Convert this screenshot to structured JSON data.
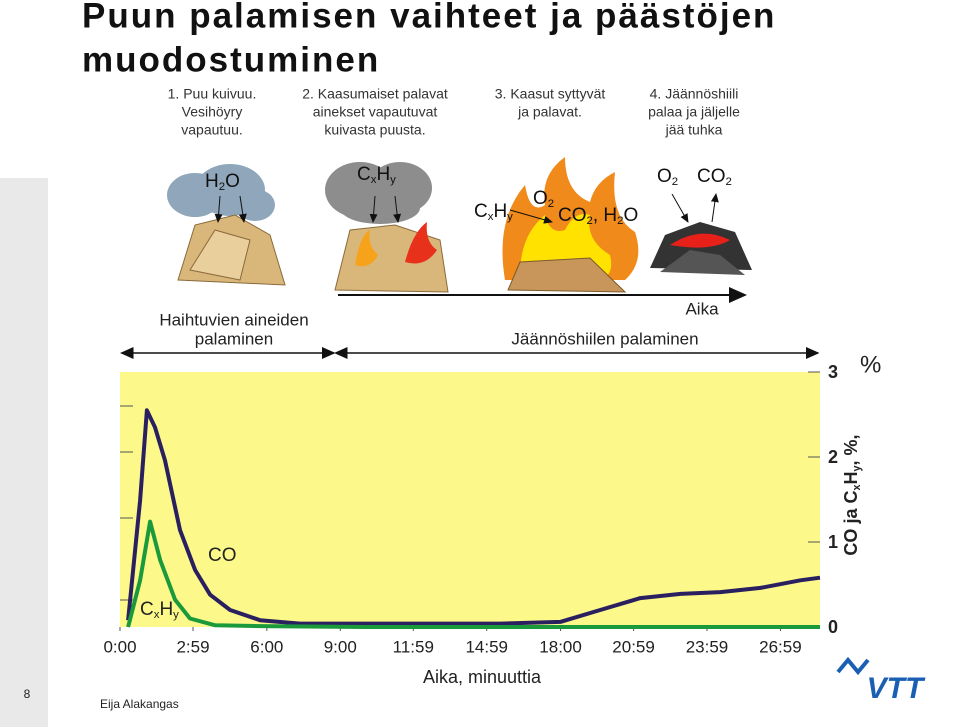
{
  "header": {
    "title": [
      "Puun palamisen vaihteet ja päästöjen",
      "muodostuminen"
    ]
  },
  "stages": [
    {
      "lines": [
        "1. Puu kuivuu.",
        "Vesihöyry",
        "vapautuu."
      ]
    },
    {
      "lines": [
        "2. Kaasumaiset palavat",
        "ainekset vapautuvat",
        "kuivasta puusta."
      ]
    },
    {
      "lines": [
        "3. Kaasut syttyvät",
        "ja palavat."
      ]
    },
    {
      "lines": [
        "4. Jäännöshiili",
        "palaa ja jäljelle",
        "jää tuhka"
      ]
    }
  ],
  "diagram_labels": {
    "water": "H2O",
    "gas_cloud": "CxHy",
    "gas_flame": "CxHy",
    "oxygen_flame": "O2",
    "products": "CO2, H2O",
    "oxygen": "O2",
    "carbon_dioxide": "CO2"
  },
  "phases": {
    "time": "Aika",
    "volatile": [
      "Haihtuvien aineiden",
      "palaminen"
    ],
    "char": "Jäännöshiilen palaminen"
  },
  "chart_data": {
    "type": "line",
    "x_label": "Aika, minuuttia",
    "y_label": "CO ja CxHy, %,",
    "y_unit": "%",
    "xlim": [
      0,
      28.6
    ],
    "xticks": [
      {
        "value": 0,
        "label": "0:00"
      },
      {
        "value": 2.983,
        "label": "2:59"
      },
      {
        "value": 6,
        "label": "6:00"
      },
      {
        "value": 9,
        "label": "9:00"
      },
      {
        "value": 11.983,
        "label": "11:59"
      },
      {
        "value": 14.983,
        "label": "14:59"
      },
      {
        "value": 18,
        "label": "18:00"
      },
      {
        "value": 20.983,
        "label": "20:59"
      },
      {
        "value": 23.983,
        "label": "23:59"
      },
      {
        "value": 26.983,
        "label": "26:59"
      }
    ],
    "ylim": [
      0,
      3
    ],
    "yticks": [
      0,
      1,
      2,
      3
    ],
    "background": "#fcf88a",
    "series": [
      {
        "name": "CO",
        "color": "#2a2060",
        "x": [
          0.33,
          0.82,
          1.1,
          1.43,
          1.84,
          2.45,
          3.07,
          3.68,
          4.5,
          5.72,
          7.36,
          11.45,
          15.54,
          17.99,
          19.62,
          21.26,
          22.9,
          24.53,
          26.17,
          27.8,
          28.6
        ],
        "values": [
          0.08,
          1.49,
          2.55,
          2.35,
          1.96,
          1.14,
          0.67,
          0.38,
          0.2,
          0.08,
          0.04,
          0.04,
          0.04,
          0.06,
          0.2,
          0.34,
          0.39,
          0.41,
          0.46,
          0.55,
          0.58
        ]
      },
      {
        "name": "CxHy",
        "color": "#1a9a3a",
        "x": [
          0.33,
          0.82,
          1.23,
          1.64,
          2.25,
          2.86,
          3.89,
          5.72,
          10,
          20,
          28.6
        ],
        "values": [
          0,
          0.55,
          1.24,
          0.79,
          0.32,
          0.1,
          0.02,
          0.01,
          0,
          0,
          0
        ]
      }
    ]
  },
  "footer": {
    "slide_number": "8",
    "author": "Eija Alakangas",
    "logo": "VTT"
  }
}
